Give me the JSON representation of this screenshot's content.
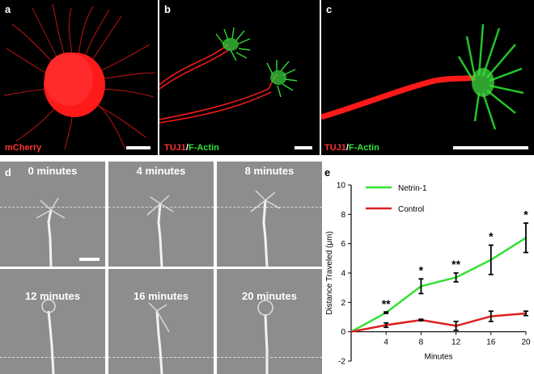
{
  "panels": {
    "a": {
      "letter": "a",
      "stain": "mCherry"
    },
    "b": {
      "letter": "b",
      "stain_red": "TUJ1",
      "stain_sep": "/",
      "stain_green": "F-Actin"
    },
    "c": {
      "letter": "c",
      "stain_red": "TUJ1",
      "stain_sep": "/",
      "stain_green": "F-Actin"
    },
    "d": {
      "letter": "d",
      "frames": [
        "0 minutes",
        "4 minutes",
        "8 minutes",
        "12 minutes",
        "16 minutes",
        "20 minutes"
      ]
    },
    "e": {
      "letter": "e"
    }
  },
  "colors": {
    "netrin": "#33e033",
    "control": "#dd1f1f",
    "red_fluor": "#ff1a1a",
    "green_fluor": "#29d92f"
  },
  "chart_data": {
    "type": "line",
    "xlabel": "Minutes",
    "ylabel": "Distance Traveled (μm)",
    "xlim": [
      0,
      20
    ],
    "ylim": [
      -2,
      10
    ],
    "xticks": [
      4,
      8,
      12,
      16,
      20
    ],
    "yticks": [
      -2,
      0,
      2,
      4,
      6,
      8,
      10
    ],
    "grid": false,
    "legend_position": "top-left",
    "x": [
      0,
      4,
      8,
      12,
      16,
      20
    ],
    "series": [
      {
        "name": "Netrin-1",
        "color": "#33e033",
        "values": [
          0,
          1.3,
          3.1,
          3.7,
          4.9,
          6.4
        ],
        "errors": [
          0,
          0.05,
          0.5,
          0.3,
          1.0,
          1.0
        ]
      },
      {
        "name": "Control",
        "color": "#dd1f1f",
        "values": [
          0,
          0.45,
          0.8,
          0.4,
          1.05,
          1.25
        ],
        "errors": [
          0,
          0.15,
          0.05,
          0.3,
          0.35,
          0.15
        ]
      }
    ],
    "annotations": [
      {
        "x": 4,
        "y": 1.9,
        "text": "**"
      },
      {
        "x": 8,
        "y": 4.2,
        "text": "*"
      },
      {
        "x": 12,
        "y": 4.6,
        "text": "**"
      },
      {
        "x": 16,
        "y": 6.5,
        "text": "*"
      },
      {
        "x": 20,
        "y": 8.0,
        "text": "*"
      }
    ]
  }
}
